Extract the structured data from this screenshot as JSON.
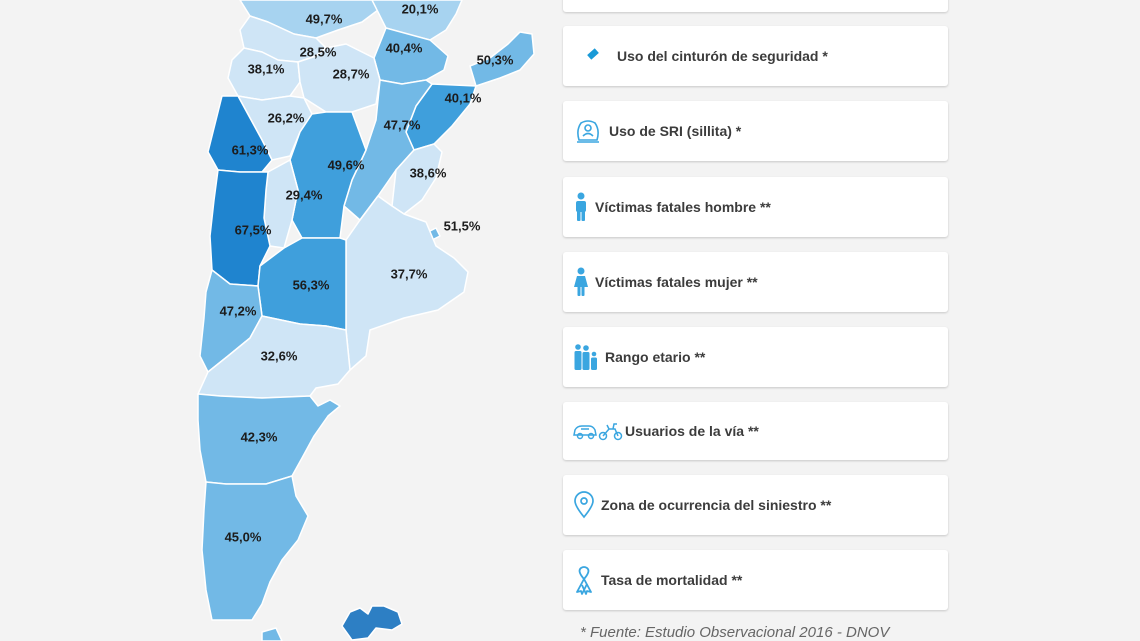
{
  "map": {
    "colors": {
      "lightest": "#cfe5f6",
      "light": "#a7d3f0",
      "medium": "#72b9e6",
      "dark": "#3f9fdc",
      "darkest": "#1f84cf",
      "islands": "#2d7fc4",
      "border": "#ffffff"
    },
    "regions": [
      {
        "id": "jujuy",
        "value": "49,7%"
      },
      {
        "id": "formosa",
        "value": "20,1%"
      },
      {
        "id": "salta",
        "value": "28,5%"
      },
      {
        "id": "chaco",
        "value": "40,4%"
      },
      {
        "id": "misiones",
        "value": "50,3%"
      },
      {
        "id": "catamarca",
        "value": "38,1%"
      },
      {
        "id": "tucuman",
        "value": "28,7%"
      },
      {
        "id": "corrientes",
        "value": "40,1%"
      },
      {
        "id": "la-rioja",
        "value": "26,2%"
      },
      {
        "id": "santa-fe",
        "value": "47,7%"
      },
      {
        "id": "san-juan",
        "value": "61,3%"
      },
      {
        "id": "cordoba",
        "value": "49,6%"
      },
      {
        "id": "entre-rios",
        "value": "38,6%"
      },
      {
        "id": "san-luis",
        "value": "29,4%"
      },
      {
        "id": "mendoza",
        "value": "67,5%"
      },
      {
        "id": "caba",
        "value": "51,5%"
      },
      {
        "id": "buenos-aires",
        "value": "37,7%"
      },
      {
        "id": "la-pampa",
        "value": "56,3%"
      },
      {
        "id": "neuquen",
        "value": "47,2%"
      },
      {
        "id": "rio-negro",
        "value": "32,6%"
      },
      {
        "id": "chubut",
        "value": "42,3%"
      },
      {
        "id": "santa-cruz",
        "value": "45,0%"
      }
    ]
  },
  "menu": {
    "items": [
      {
        "label": "Uso del cinturón de seguridad *",
        "icon": "seatbelt-icon",
        "active": true
      },
      {
        "label": "Uso de SRI (sillita) *",
        "icon": "child-seat-icon",
        "active": false
      },
      {
        "label": "Víctimas fatales hombre **",
        "icon": "male-icon",
        "active": false
      },
      {
        "label": "Víctimas fatales mujer **",
        "icon": "female-icon",
        "active": false
      },
      {
        "label": "Rango etario **",
        "icon": "family-icon",
        "active": false
      },
      {
        "label": "Usuarios de la vía **",
        "icon": "vehicles-icon",
        "active": false
      },
      {
        "label": "Zona de ocurrencia del siniestro **",
        "icon": "location-pin-icon",
        "active": false
      },
      {
        "label": "Tasa de mortalidad **",
        "icon": "ribbon-icon",
        "active": false
      }
    ],
    "accent_color": "#1a9ad7",
    "icon_color": "#3aa6e0"
  },
  "footnote": "* Fuente: Estudio Observacional 2016 - DNOV"
}
